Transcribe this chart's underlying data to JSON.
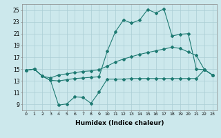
{
  "xlabel": "Humidex (Indice chaleur)",
  "bg_color": "#cce8ec",
  "grid_color": "#aacdd4",
  "line_color": "#1e7a72",
  "xlim": [
    -0.5,
    23.5
  ],
  "ylim": [
    8.0,
    26.0
  ],
  "xticks": [
    0,
    1,
    2,
    3,
    4,
    5,
    6,
    7,
    8,
    9,
    10,
    11,
    12,
    13,
    14,
    15,
    16,
    17,
    18,
    19,
    20,
    21,
    22,
    23
  ],
  "yticks": [
    9,
    11,
    13,
    15,
    17,
    19,
    21,
    23,
    25
  ],
  "line1_x": [
    0,
    1,
    2,
    3,
    4,
    5,
    6,
    7,
    8,
    9,
    10,
    11,
    12,
    13,
    14,
    15,
    16,
    17,
    18,
    19,
    20,
    21,
    22,
    23
  ],
  "line1_y": [
    14.8,
    15.0,
    13.8,
    13.1,
    8.9,
    9.1,
    10.3,
    10.2,
    9.2,
    11.1,
    13.3,
    13.3,
    13.3,
    13.4,
    13.4,
    13.4,
    13.4,
    13.4,
    13.4,
    13.4,
    13.4,
    13.4,
    14.9,
    14.0
  ],
  "line2_x": [
    0,
    1,
    2,
    3,
    4,
    5,
    6,
    7,
    8,
    9,
    10,
    11,
    12,
    13,
    14,
    15,
    16,
    17,
    18,
    19,
    20,
    21,
    22,
    23
  ],
  "line2_y": [
    14.8,
    15.0,
    13.8,
    13.5,
    14.0,
    14.2,
    14.4,
    14.6,
    14.7,
    14.9,
    15.5,
    16.2,
    16.7,
    17.1,
    17.5,
    17.8,
    18.1,
    18.4,
    18.7,
    18.5,
    17.9,
    17.3,
    14.9,
    14.0
  ],
  "line3_x": [
    0,
    1,
    2,
    3,
    4,
    5,
    6,
    7,
    8,
    9,
    10,
    11,
    12,
    13,
    14,
    15,
    16,
    17,
    18,
    19,
    20,
    21,
    22,
    23
  ],
  "line3_y": [
    14.8,
    15.0,
    13.8,
    13.1,
    13.0,
    13.2,
    13.4,
    13.5,
    13.6,
    13.7,
    18.0,
    21.3,
    23.3,
    22.8,
    23.3,
    25.1,
    24.5,
    25.2,
    20.6,
    20.9,
    21.0,
    15.0,
    14.9,
    14.0
  ]
}
